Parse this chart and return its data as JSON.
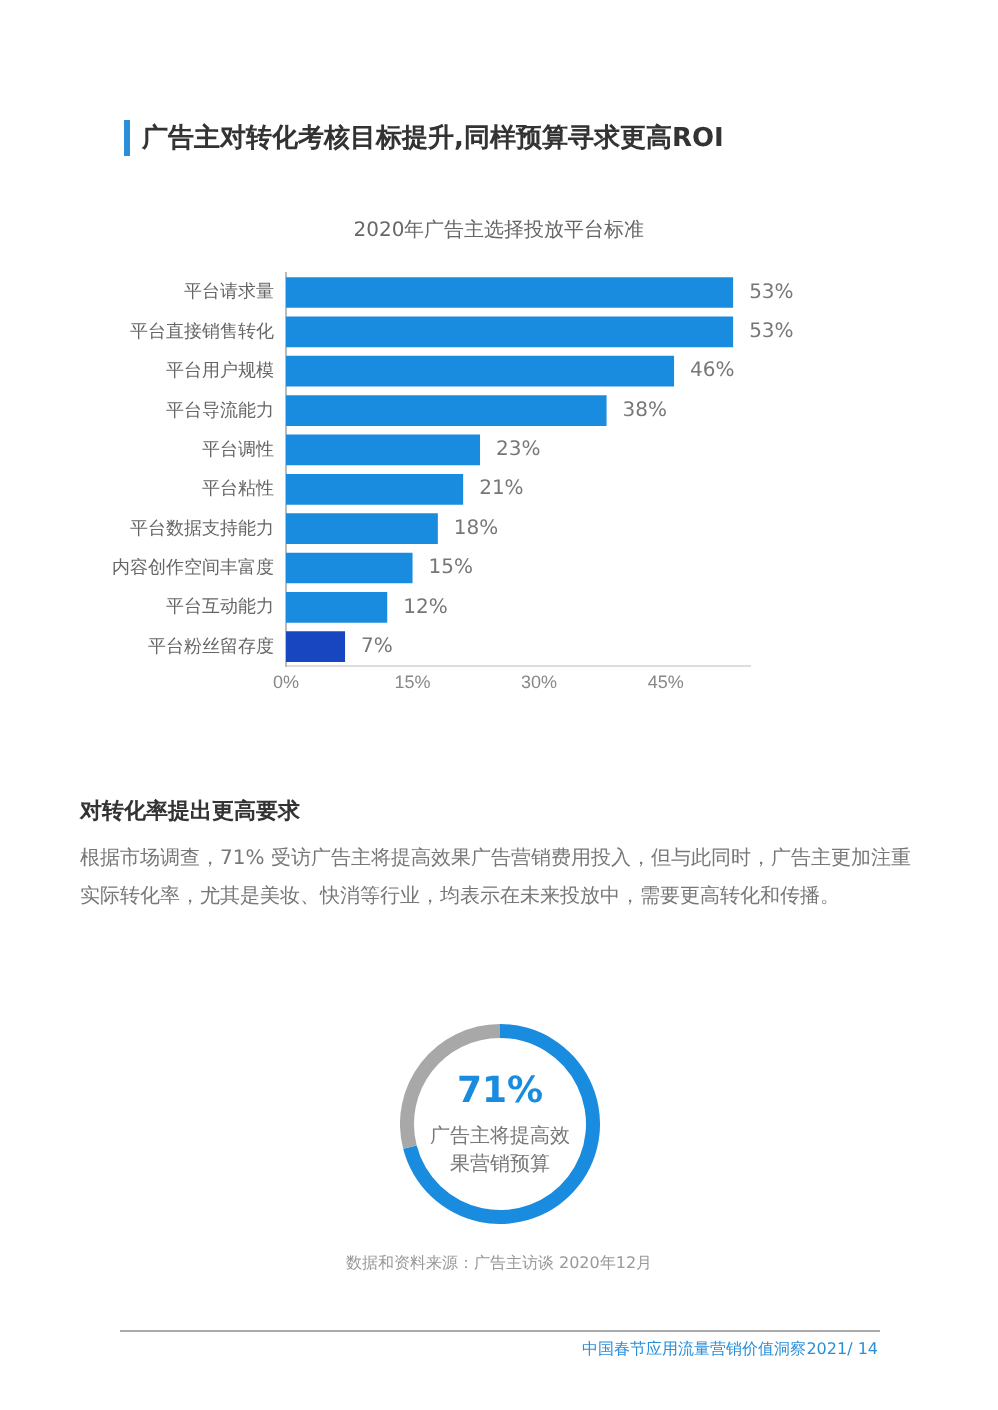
{
  "chart_data": [
    {
      "type": "bar",
      "orientation": "horizontal",
      "title": "广告主对转化考核目标提升,同样预算寻求更高ROI",
      "subtitle": "2020年广告主选择投放平台标准",
      "categories": [
        "平台请求量",
        "平台直接销售转化",
        "平台用户规模",
        "平台导流能力",
        "平台调性",
        "平台粘性",
        "平台数据支持能力",
        "内容创作空间丰富度",
        "平台互动能力",
        "平台粉丝留存度"
      ],
      "values": [
        53,
        53,
        46,
        38,
        23,
        21,
        18,
        15,
        12,
        7
      ],
      "colors": [
        "#1a8ce0",
        "#1a8ce0",
        "#1a8ce0",
        "#1a8ce0",
        "#1a8ce0",
        "#1a8ce0",
        "#1a8ce0",
        "#1a8ce0",
        "#1a8ce0",
        "#1746c0"
      ],
      "value_labels": [
        "53%",
        "53%",
        "46%",
        "38%",
        "23%",
        "21%",
        "18%",
        "15%",
        "12%",
        "7%"
      ],
      "xlim": [
        0,
        55
      ],
      "xticks": [
        {
          "value": 0,
          "label": "0%"
        },
        {
          "value": 15,
          "label": "15%"
        },
        {
          "value": 30,
          "label": "30%"
        },
        {
          "value": 45,
          "label": "45%"
        }
      ],
      "grid": false,
      "legend": false
    },
    {
      "type": "donut",
      "title": "对转化率提出更高要求",
      "subtitle": "根据市场调查，71% 受访广告主将提高效果广告营销费用投入，但与此同时，广告主更加注重实际转化率，尤其是美妆、快消等行业，均表示在未来投放中，需要更高转化和传播。",
      "categories": [
        null,
        null
      ],
      "values": [
        71,
        29
      ],
      "colors": [
        "#1a8ce0",
        "#a8a8a8"
      ],
      "value_labels": [
        "71%",
        null
      ],
      "annotations": [
        "广告主将提高效果营销预算",
        "数据和资料来源：广告主访谈 2020年12月",
        "中国春节应用流量营销价值洞察2021/ 14"
      ],
      "legend": false
    }
  ]
}
